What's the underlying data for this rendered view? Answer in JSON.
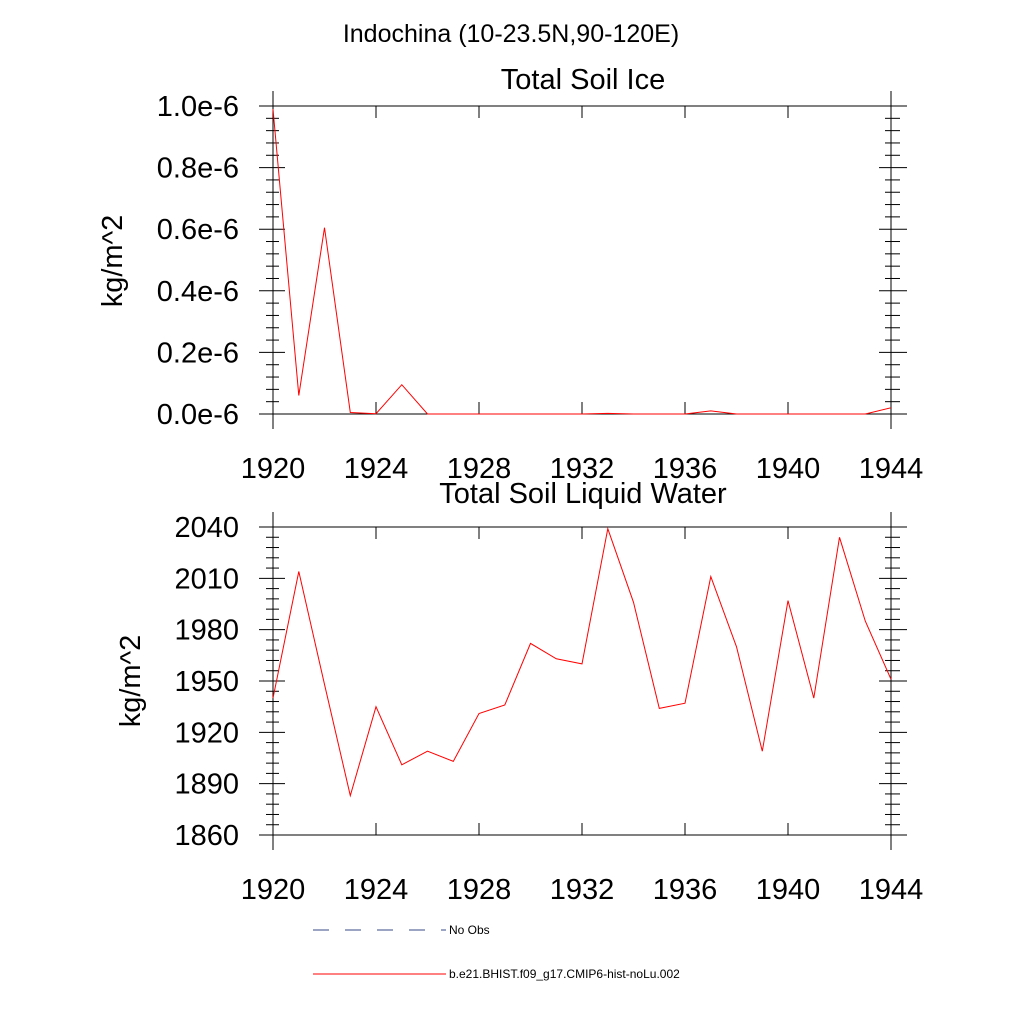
{
  "figure": {
    "main_title": "Indochina (10-23.5N,90-120E)"
  },
  "chart_data": [
    {
      "type": "line",
      "title": "Total Soil Ice",
      "xlabel": "",
      "ylabel": "kg/m^2",
      "xlim": [
        1920,
        1944
      ],
      "ylim": [
        0,
        1e-06
      ],
      "xticks": [
        1920,
        1924,
        1928,
        1932,
        1936,
        1940,
        1944
      ],
      "xtick_labels": [
        "1920",
        "1924",
        "1928",
        "1932",
        "1936",
        "1940",
        "1944"
      ],
      "yticks": [
        0,
        2e-07,
        4e-07,
        6e-07,
        8e-07,
        1e-06
      ],
      "ytick_labels": [
        "0.0e-6",
        "0.2e-6",
        "0.4e-6",
        "0.6e-6",
        "0.8e-6",
        "1.0e-6"
      ],
      "grid": false,
      "x": [
        1920,
        1921,
        1922,
        1923,
        1924,
        1925,
        1926,
        1927,
        1928,
        1929,
        1930,
        1931,
        1932,
        1933,
        1934,
        1935,
        1936,
        1937,
        1938,
        1939,
        1940,
        1941,
        1942,
        1943,
        1944
      ],
      "series": [
        {
          "name": "b.e21.BHIST.f09_g17.CMIP6-hist-noLu.002",
          "color": "#ff0000",
          "values": [
            9.9e-07,
            6e-08,
            6.05e-07,
            5e-09,
            1e-09,
            9.5e-08,
            0,
            0,
            0,
            0,
            0,
            0,
            0,
            2e-09,
            0,
            0,
            0,
            1e-08,
            0,
            0,
            0,
            0,
            0,
            0,
            2e-08
          ]
        }
      ]
    },
    {
      "type": "line",
      "title": "Total Soil Liquid Water",
      "xlabel": "",
      "ylabel": "kg/m^2",
      "xlim": [
        1920,
        1944
      ],
      "ylim": [
        1860,
        2040
      ],
      "xticks": [
        1920,
        1924,
        1928,
        1932,
        1936,
        1940,
        1944
      ],
      "xtick_labels": [
        "1920",
        "1924",
        "1928",
        "1932",
        "1936",
        "1940",
        "1944"
      ],
      "yticks": [
        1860,
        1890,
        1920,
        1950,
        1980,
        2010,
        2040
      ],
      "ytick_labels": [
        "1860",
        "1890",
        "1920",
        "1950",
        "1980",
        "2010",
        "2040"
      ],
      "grid": false,
      "x": [
        1920,
        1921,
        1922,
        1923,
        1924,
        1925,
        1926,
        1927,
        1928,
        1929,
        1930,
        1931,
        1932,
        1933,
        1934,
        1935,
        1936,
        1937,
        1938,
        1939,
        1940,
        1941,
        1942,
        1943,
        1944
      ],
      "series": [
        {
          "name": "b.e21.BHIST.f09_g17.CMIP6-hist-noLu.002",
          "color": "#ff0000",
          "values": [
            1940,
            2014,
            1948,
            1883,
            1935,
            1901,
            1909,
            1903,
            1931,
            1936,
            1972,
            1963,
            1960,
            2039,
            1996,
            1934,
            1937,
            2011,
            1970,
            1909,
            1997,
            1940,
            2034,
            1985,
            1951
          ]
        }
      ]
    }
  ],
  "legend": {
    "placement": "bottom",
    "items": [
      {
        "label": "No Obs",
        "style": "dashed",
        "color": "#3a4a8a"
      },
      {
        "label": "b.e21.BHIST.f09_g17.CMIP6-hist-noLu.002",
        "style": "solid",
        "color": "#ff0000"
      }
    ]
  }
}
